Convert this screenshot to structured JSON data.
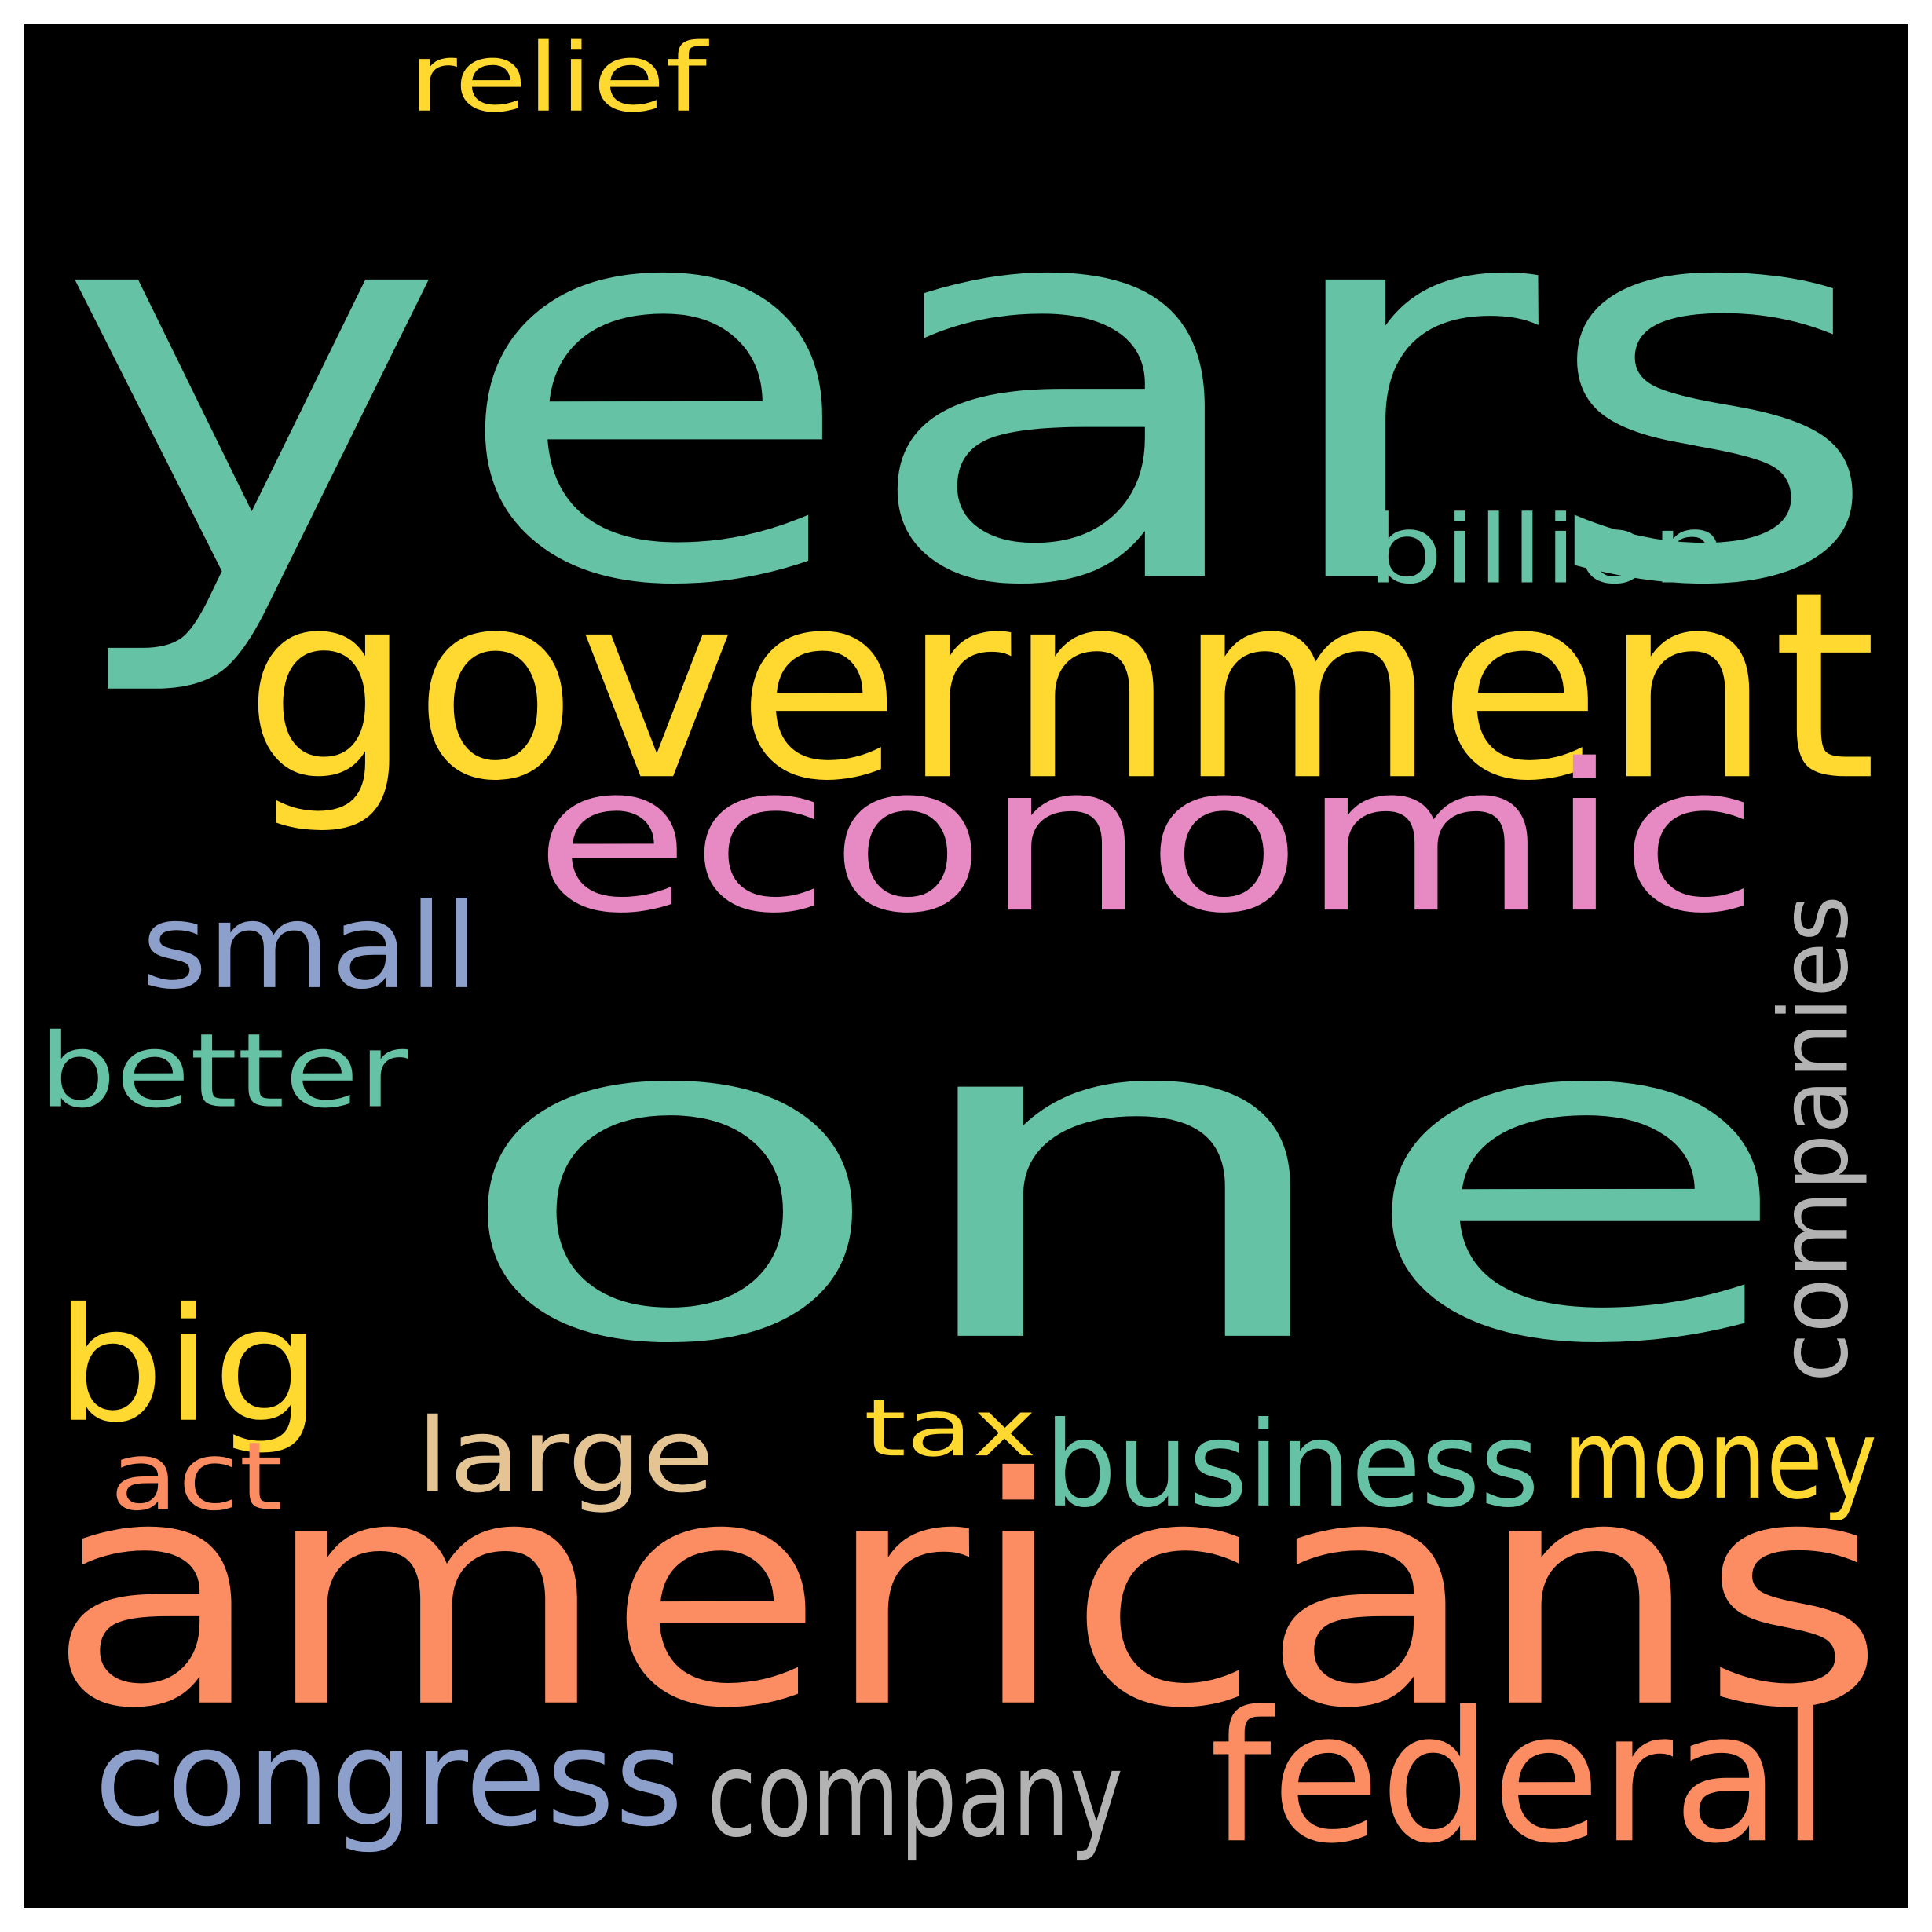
{
  "background": "#000000",
  "words": [
    {
      "id": "years",
      "text": "years",
      "color": "#66c2a5"
    },
    {
      "id": "one",
      "text": "one",
      "color": "#66c2a5"
    },
    {
      "id": "government",
      "text": "government",
      "color": "#ffd92f"
    },
    {
      "id": "americans",
      "text": "americans",
      "color": "#fc8d62"
    },
    {
      "id": "economic",
      "text": "economic",
      "color": "#e78ac3"
    },
    {
      "id": "federal",
      "text": "federal",
      "color": "#fc8d62"
    },
    {
      "id": "congress",
      "text": "congress",
      "color": "#8da0cb"
    },
    {
      "id": "big",
      "text": "big",
      "color": "#ffd92f"
    },
    {
      "id": "business",
      "text": "business",
      "color": "#66c2a5"
    },
    {
      "id": "companies",
      "text": "companies",
      "color": "#b3b3b3"
    },
    {
      "id": "company",
      "text": "company",
      "color": "#b3b3b3"
    },
    {
      "id": "small",
      "text": "small",
      "color": "#8da0cb"
    },
    {
      "id": "billion",
      "text": "billion",
      "color": "#66c2a5"
    },
    {
      "id": "better",
      "text": "better",
      "color": "#66c2a5"
    },
    {
      "id": "money",
      "text": "money",
      "color": "#ffd92f"
    },
    {
      "id": "large",
      "text": "large",
      "color": "#e5c494"
    },
    {
      "id": "act",
      "text": "act",
      "color": "#fc8d62"
    },
    {
      "id": "relief",
      "text": "relief",
      "color": "#ffd92f"
    },
    {
      "id": "tax",
      "text": "tax",
      "color": "#ffd92f"
    }
  ]
}
